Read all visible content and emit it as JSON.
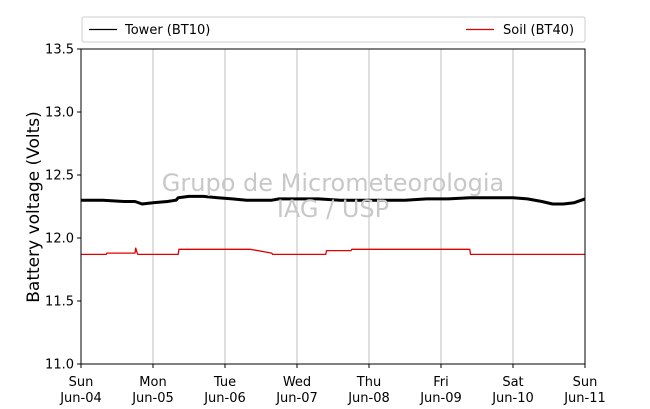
{
  "watermark": {
    "line1": "Grupo de Micrometeorologia",
    "line2": "IAG / USP"
  },
  "chart_data": {
    "type": "line",
    "title": "",
    "xlabel": "",
    "ylabel": "Battery voltage (Volts)",
    "ylim": [
      11.0,
      13.5
    ],
    "y_ticks": [
      "11.0",
      "11.5",
      "12.0",
      "12.5",
      "13.0",
      "13.5"
    ],
    "x_range_days": [
      0,
      7
    ],
    "x_ticks": [
      {
        "day": "Sun",
        "date": "Jun-04"
      },
      {
        "day": "Mon",
        "date": "Jun-05"
      },
      {
        "day": "Tue",
        "date": "Jun-06"
      },
      {
        "day": "Wed",
        "date": "Jun-07"
      },
      {
        "day": "Thu",
        "date": "Jun-08"
      },
      {
        "day": "Fri",
        "date": "Jun-09"
      },
      {
        "day": "Sat",
        "date": "Jun-10"
      },
      {
        "day": "Sun",
        "date": "Jun-11"
      }
    ],
    "grid": "vertical",
    "legend": "top",
    "series": [
      {
        "name": "Tower (BT10)",
        "color": "#000000",
        "x": [
          0,
          0.3,
          0.6,
          0.75,
          0.85,
          1.0,
          1.2,
          1.32,
          1.35,
          1.5,
          1.7,
          1.9,
          2.1,
          2.3,
          2.55,
          2.65,
          2.75,
          3.0,
          3.3,
          3.6,
          3.9,
          4.2,
          4.5,
          4.8,
          5.1,
          5.4,
          5.7,
          6.0,
          6.2,
          6.4,
          6.55,
          6.7,
          6.85,
          7.0
        ],
        "y": [
          12.3,
          12.3,
          12.29,
          12.29,
          12.27,
          12.28,
          12.29,
          12.3,
          12.32,
          12.33,
          12.33,
          12.32,
          12.31,
          12.3,
          12.3,
          12.3,
          12.31,
          12.31,
          12.31,
          12.3,
          12.3,
          12.3,
          12.3,
          12.31,
          12.31,
          12.32,
          12.32,
          12.32,
          12.31,
          12.29,
          12.27,
          12.27,
          12.28,
          12.31
        ]
      },
      {
        "name": "Soil (BT40)",
        "color": "#e00000",
        "x": [
          0,
          0.35,
          0.36,
          0.75,
          0.76,
          0.78,
          0.79,
          1.35,
          1.36,
          2.35,
          2.65,
          2.66,
          3.4,
          3.41,
          3.75,
          3.76,
          5.4,
          5.41,
          7.0
        ],
        "y": [
          11.87,
          11.87,
          11.88,
          11.88,
          11.92,
          11.88,
          11.87,
          11.87,
          11.91,
          11.91,
          11.88,
          11.87,
          11.87,
          11.9,
          11.9,
          11.91,
          11.91,
          11.87,
          11.87
        ]
      }
    ]
  }
}
